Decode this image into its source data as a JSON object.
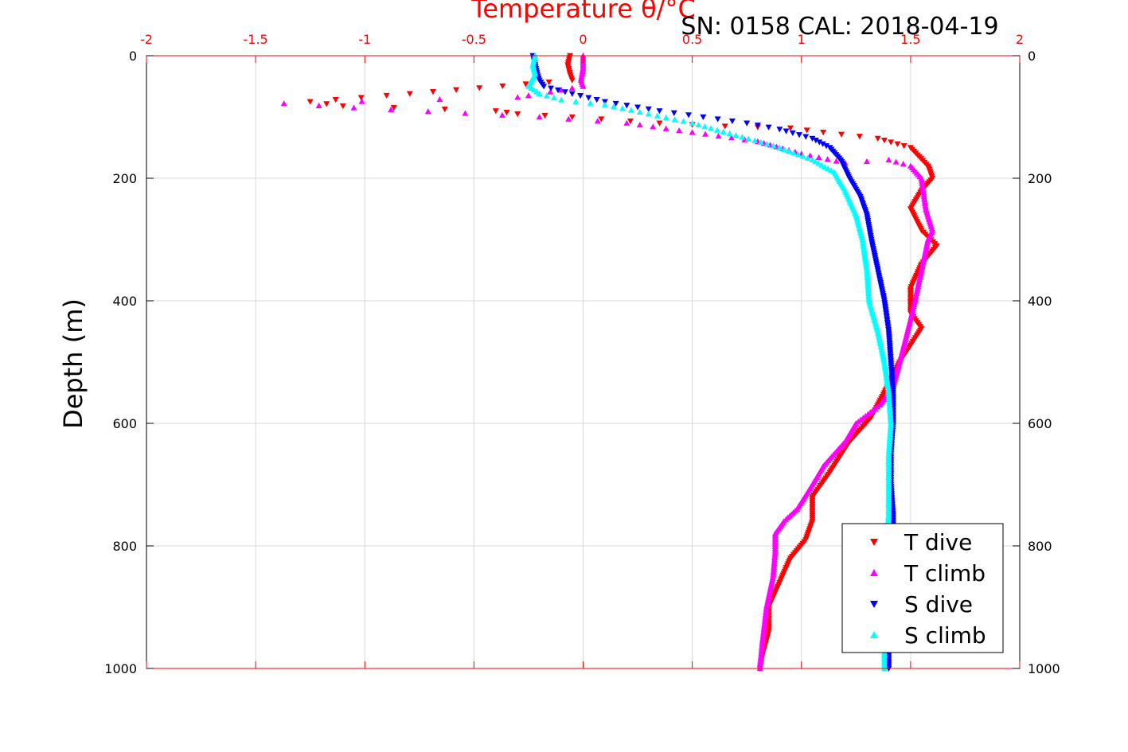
{
  "chart_data": {
    "type": "scatter",
    "title": "SN: 0158  CAL: 2018-04-19",
    "xlabel": "Temperature θ/°C",
    "ylabel": "Depth (m)",
    "xlim": [
      -2,
      2
    ],
    "ylim": [
      0,
      1000
    ],
    "y_reversed": true,
    "x_axis_position": "top",
    "grid": true,
    "legend_position": "bottom-right",
    "x_ticks": [
      "-2",
      "-1.5",
      "-1",
      "-0.5",
      "0",
      "0.5",
      "1",
      "1.5",
      "2"
    ],
    "y_ticks": [
      "0",
      "200",
      "400",
      "600",
      "800",
      "1000"
    ],
    "colors": {
      "axis_top": "#ff0000",
      "axis_side": "#000000",
      "grid": "#d9d9d9"
    },
    "series": [
      {
        "name": "T dive",
        "color": "#ff0000",
        "marker": "triangle-down",
        "x": [
          -0.06,
          -0.07,
          -0.06,
          -0.05,
          -0.9,
          -1.25,
          -1.1,
          -0.4,
          -0.3,
          -0.05,
          0.35,
          0.65,
          0.95,
          1.1,
          1.35,
          1.5,
          1.58,
          1.6,
          1.55,
          1.5,
          1.55,
          1.62,
          1.55,
          1.5,
          1.5,
          1.55,
          1.45,
          1.38,
          1.32,
          1.22,
          1.13,
          1.05,
          1.05,
          1.02,
          0.95,
          0.9,
          0.85,
          0.85,
          0.82,
          0.81
        ],
        "y": [
          0,
          15,
          30,
          40,
          65,
          75,
          82,
          90,
          95,
          100,
          110,
          115,
          118,
          125,
          135,
          150,
          180,
          200,
          220,
          250,
          285,
          310,
          340,
          380,
          420,
          445,
          500,
          550,
          590,
          630,
          680,
          720,
          760,
          790,
          820,
          860,
          900,
          940,
          980,
          1000
        ]
      },
      {
        "name": "T climb",
        "color": "#ff00ff",
        "marker": "triangle-up",
        "x": [
          0,
          0,
          -0.01,
          0,
          -0.3,
          -1.37,
          -1.05,
          -0.2,
          0.2,
          0.5,
          0.8,
          1.0,
          1.2,
          1.4,
          1.5,
          1.55,
          1.57,
          1.6,
          1.58,
          1.55,
          1.52,
          1.5,
          1.45,
          1.42,
          1.36,
          1.25,
          1.2,
          1.1,
          1.05,
          0.98,
          0.92,
          0.88,
          0.88,
          0.87,
          0.84,
          0.82,
          0.81
        ],
        "y": [
          0,
          20,
          40,
          50,
          68,
          78,
          85,
          100,
          110,
          125,
          140,
          160,
          175,
          170,
          180,
          200,
          250,
          285,
          300,
          350,
          400,
          430,
          500,
          540,
          570,
          600,
          630,
          670,
          700,
          740,
          760,
          780,
          810,
          850,
          900,
          960,
          1000
        ]
      },
      {
        "name": "S dive",
        "color": "#0000ff",
        "marker": "triangle-down",
        "x": [
          -0.23,
          -0.22,
          -0.21,
          -0.2,
          -0.18,
          -0.05,
          0.1,
          0.35,
          0.55,
          0.75,
          0.9,
          1.05,
          1.13,
          1.18,
          1.22,
          1.27,
          1.3,
          1.32,
          1.35,
          1.38,
          1.4,
          1.41,
          1.42,
          1.42,
          1.41,
          1.41,
          1.42,
          1.42,
          1.41,
          1.4,
          1.4
        ],
        "y": [
          0,
          15,
          30,
          40,
          50,
          62,
          75,
          90,
          100,
          110,
          120,
          135,
          150,
          170,
          200,
          230,
          260,
          300,
          350,
          400,
          450,
          500,
          550,
          600,
          650,
          700,
          750,
          800,
          900,
          950,
          1000
        ]
      },
      {
        "name": "S climb",
        "color": "#00ffff",
        "marker": "triangle-up",
        "x": [
          -0.22,
          -0.23,
          -0.22,
          -0.25,
          -0.2,
          -0.1,
          0.1,
          0.3,
          0.5,
          0.7,
          0.9,
          1.05,
          1.15,
          1.2,
          1.25,
          1.28,
          1.3,
          1.31,
          1.35,
          1.38,
          1.4,
          1.41,
          1.4,
          1.4,
          1.4,
          1.39,
          1.39,
          1.39,
          1.38,
          1.38
        ],
        "y": [
          0,
          15,
          30,
          50,
          62,
          72,
          80,
          95,
          110,
          130,
          150,
          170,
          190,
          220,
          260,
          300,
          350,
          400,
          450,
          500,
          550,
          600,
          650,
          700,
          750,
          800,
          850,
          900,
          950,
          1000
        ]
      }
    ]
  }
}
